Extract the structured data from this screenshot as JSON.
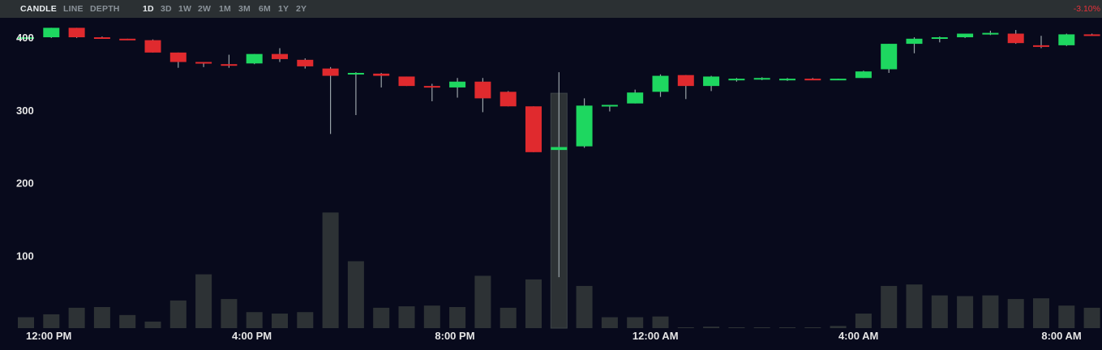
{
  "toolbar": {
    "chart_types": [
      {
        "label": "CANDLE",
        "active": true
      },
      {
        "label": "LINE",
        "active": false
      },
      {
        "label": "DEPTH",
        "active": false
      }
    ],
    "ranges": [
      {
        "label": "1D",
        "active": true
      },
      {
        "label": "3D",
        "active": false
      },
      {
        "label": "1W",
        "active": false
      },
      {
        "label": "2W",
        "active": false
      },
      {
        "label": "1M",
        "active": false
      },
      {
        "label": "3M",
        "active": false
      },
      {
        "label": "6M",
        "active": false
      },
      {
        "label": "1Y",
        "active": false
      },
      {
        "label": "2Y",
        "active": false
      }
    ],
    "change": "-3.10%"
  },
  "colors": {
    "background": "#080a1c",
    "toolbar": "#2b3033",
    "up": "#1ed760",
    "down": "#e02a2e",
    "volume": "#2d3235",
    "wick": "#9aa3a8",
    "axis_text": "#e6e6e6",
    "negative_change": "#e8313a"
  },
  "chart_data": {
    "type": "candlestick",
    "y_ticks": [
      "100",
      "200",
      "300",
      "400"
    ],
    "y_tick_values": [
      100,
      200,
      300,
      400
    ],
    "ylim": [
      0,
      430
    ],
    "x_ticks": [
      {
        "label": "12:00 PM",
        "index": 0.9
      },
      {
        "label": "4:00 PM",
        "index": 8.9
      },
      {
        "label": "8:00 PM",
        "index": 16.9
      },
      {
        "label": "12:00 AM",
        "index": 24.8
      },
      {
        "label": "4:00 AM",
        "index": 32.8
      },
      {
        "label": "8:00 AM",
        "index": 40.8
      }
    ],
    "grid": false,
    "candles": [
      {
        "o": 399,
        "h": 400,
        "l": 398,
        "c": 400,
        "v": 15
      },
      {
        "o": 400,
        "h": 413,
        "l": 399,
        "c": 413,
        "v": 19
      },
      {
        "o": 413,
        "h": 413,
        "l": 399,
        "c": 400,
        "v": 28
      },
      {
        "o": 400,
        "h": 401,
        "l": 399,
        "c": 399,
        "v": 29
      },
      {
        "o": 398,
        "h": 398,
        "l": 396,
        "c": 397,
        "v": 18
      },
      {
        "o": 396,
        "h": 397,
        "l": 379,
        "c": 379,
        "v": 9
      },
      {
        "o": 379,
        "h": 379,
        "l": 358,
        "c": 366,
        "v": 38
      },
      {
        "o": 366,
        "h": 366,
        "l": 359,
        "c": 364,
        "v": 74
      },
      {
        "o": 363,
        "h": 376,
        "l": 358,
        "c": 361,
        "v": 40
      },
      {
        "o": 364,
        "h": 377,
        "l": 363,
        "c": 377,
        "v": 22
      },
      {
        "o": 377,
        "h": 385,
        "l": 366,
        "c": 370,
        "v": 20
      },
      {
        "o": 369,
        "h": 371,
        "l": 357,
        "c": 360,
        "v": 22
      },
      {
        "o": 357,
        "h": 359,
        "l": 267,
        "c": 347,
        "v": 159
      },
      {
        "o": 350,
        "h": 352,
        "l": 293,
        "c": 351,
        "v": 92
      },
      {
        "o": 350,
        "h": 351,
        "l": 331,
        "c": 347,
        "v": 28
      },
      {
        "o": 346,
        "h": 346,
        "l": 333,
        "c": 333,
        "v": 30
      },
      {
        "o": 333,
        "h": 336,
        "l": 312,
        "c": 331,
        "v": 31
      },
      {
        "o": 331,
        "h": 344,
        "l": 317,
        "c": 339,
        "v": 29
      },
      {
        "o": 339,
        "h": 344,
        "l": 297,
        "c": 316,
        "v": 72
      },
      {
        "o": 325,
        "h": 326,
        "l": 305,
        "c": 305,
        "v": 28
      },
      {
        "o": 305,
        "h": 305,
        "l": 242,
        "c": 242,
        "v": 67
      },
      {
        "o": 245,
        "h": 352,
        "l": 70,
        "c": 249,
        "v": 323,
        "v_outline": true
      },
      {
        "o": 250,
        "h": 316,
        "l": 248,
        "c": 306,
        "v": 58
      },
      {
        "o": 306,
        "h": 307,
        "l": 298,
        "c": 307,
        "v": 15
      },
      {
        "o": 309,
        "h": 328,
        "l": 309,
        "c": 324,
        "v": 15
      },
      {
        "o": 325,
        "h": 349,
        "l": 318,
        "c": 347,
        "v": 16
      },
      {
        "o": 348,
        "h": 348,
        "l": 315,
        "c": 333,
        "v": 1
      },
      {
        "o": 333,
        "h": 347,
        "l": 326,
        "c": 346,
        "v": 2
      },
      {
        "o": 341,
        "h": 344,
        "l": 339,
        "c": 343,
        "v": 0
      },
      {
        "o": 343,
        "h": 345,
        "l": 341,
        "c": 344,
        "v": 1
      },
      {
        "o": 341,
        "h": 344,
        "l": 340,
        "c": 343,
        "v": 0
      },
      {
        "o": 343,
        "h": 344,
        "l": 341,
        "c": 342,
        "v": 1
      },
      {
        "o": 342,
        "h": 343,
        "l": 341,
        "c": 343,
        "v": 3
      },
      {
        "o": 344,
        "h": 354,
        "l": 344,
        "c": 353,
        "v": 20
      },
      {
        "o": 356,
        "h": 391,
        "l": 351,
        "c": 391,
        "v": 58
      },
      {
        "o": 391,
        "h": 400,
        "l": 378,
        "c": 398,
        "v": 60
      },
      {
        "o": 399,
        "h": 401,
        "l": 393,
        "c": 400,
        "v": 45
      },
      {
        "o": 400,
        "h": 405,
        "l": 399,
        "c": 405,
        "v": 44
      },
      {
        "o": 405,
        "h": 409,
        "l": 403,
        "c": 406,
        "v": 45
      },
      {
        "o": 405,
        "h": 410,
        "l": 391,
        "c": 392,
        "v": 40
      },
      {
        "o": 389,
        "h": 402,
        "l": 385,
        "c": 388,
        "v": 41
      },
      {
        "o": 389,
        "h": 405,
        "l": 388,
        "c": 404,
        "v": 31
      },
      {
        "o": 404,
        "h": 405,
        "l": 403,
        "c": 403,
        "v": 28
      }
    ]
  }
}
